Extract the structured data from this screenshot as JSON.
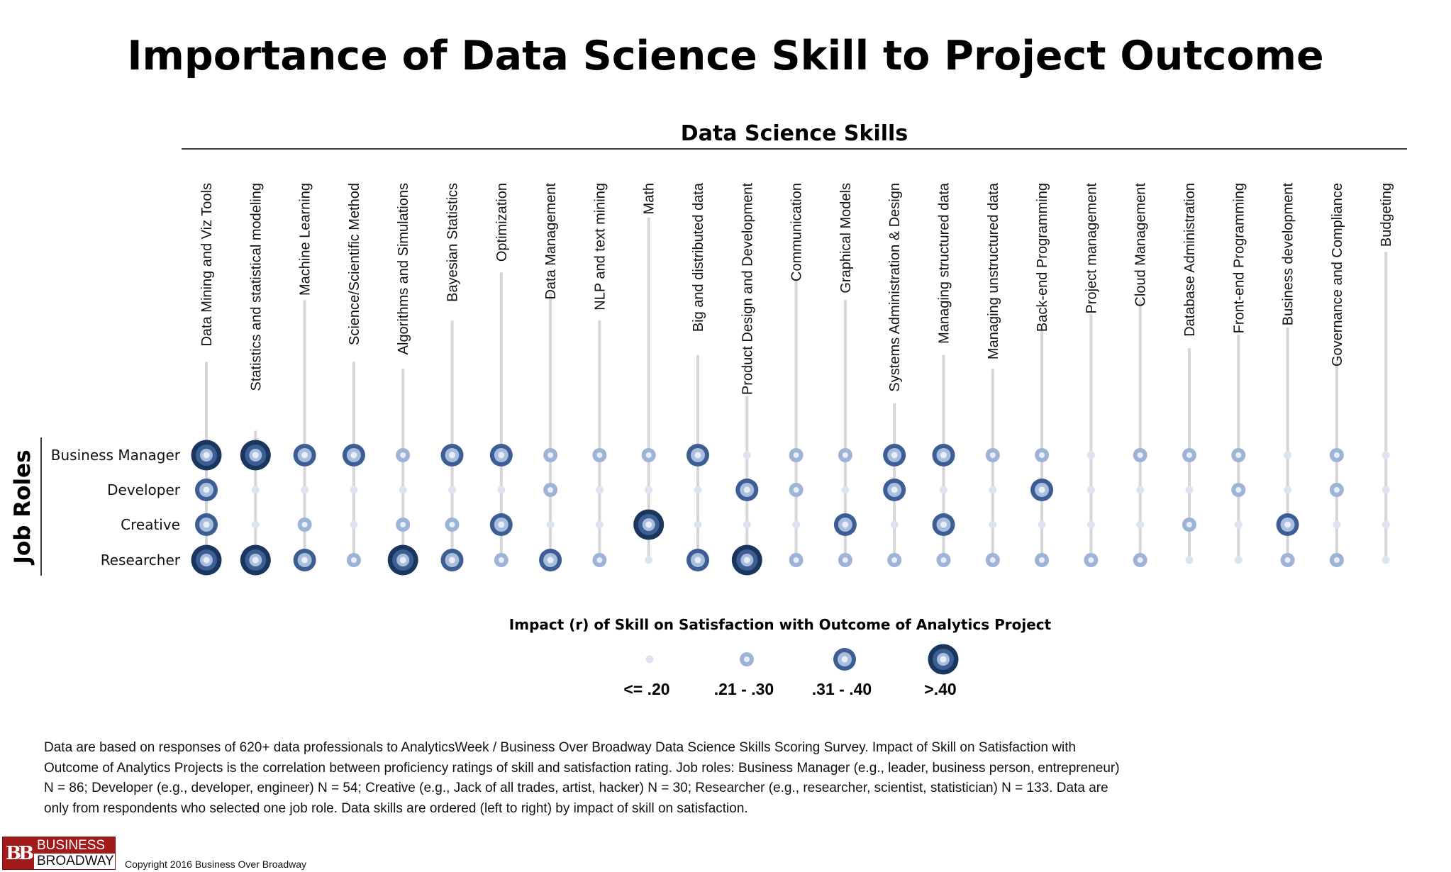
{
  "title": "Importance of Data Science Skill to Project Outcome",
  "chart_data": {
    "type": "bubble-matrix",
    "title": "Importance of Data Science Skill to Project Outcome",
    "x_axis_title": "Data Science Skills",
    "y_axis_title": "Job Roles",
    "skills": [
      "Data Mining and Viz Tools",
      "Statistics and statistical modeling",
      "Machine Learning",
      "Science/Scientific Method",
      "Algorithms and Simulations",
      "Bayesian Statistics",
      "Optimization",
      "Data Management",
      "NLP and text mining",
      "Math",
      "Big and distributed data",
      "Product Design and Development",
      "Communication",
      "Graphical Models",
      "Systems Administration & Design",
      "Managing structured data",
      "Managing unstructured data",
      "Back-end Programming",
      "Project management",
      "Cloud Management",
      "Database Administration",
      "Front-end Programming",
      "Business development",
      "Governance and Compliance",
      "Budgeting"
    ],
    "roles": [
      "Business Manager",
      "Developer",
      "Creative",
      "Researcher"
    ],
    "impact_levels": [
      {
        "level": 1,
        "label": "<= .20"
      },
      {
        "level": 2,
        "label": ".21 - .30"
      },
      {
        "level": 3,
        "label": ".31 - .40"
      },
      {
        "level": 4,
        "label": ">.40"
      }
    ],
    "matrix": [
      [
        4,
        4,
        3,
        3,
        2,
        3,
        3,
        2,
        2,
        2,
        3,
        1,
        2,
        2,
        3,
        3,
        2,
        2,
        1,
        2,
        2,
        2,
        1,
        2,
        1
      ],
      [
        3,
        1,
        1,
        1,
        1,
        1,
        1,
        2,
        1,
        1,
        1,
        3,
        2,
        1,
        3,
        1,
        1,
        3,
        1,
        1,
        1,
        2,
        1,
        2,
        1
      ],
      [
        3,
        1,
        2,
        1,
        2,
        2,
        3,
        1,
        1,
        4,
        1,
        1,
        1,
        3,
        1,
        3,
        1,
        1,
        1,
        1,
        2,
        1,
        3,
        1,
        1
      ],
      [
        4,
        4,
        3,
        2,
        4,
        3,
        2,
        3,
        2,
        1,
        3,
        4,
        2,
        2,
        2,
        2,
        2,
        2,
        2,
        2,
        1,
        1,
        2,
        2,
        1
      ]
    ],
    "legend_title": "Impact (r) of Skill on Satisfaction with Outcome of Analytics Project",
    "colors": {
      "level1": "#dce4f0",
      "level2_outer": "#9db3d8",
      "level3_outer": "#3c5e93",
      "level4_outer": "#1b365e",
      "inner_light": "#a9bedf",
      "center": "#e8eef7",
      "stem": "#d6d6d6"
    }
  },
  "footnote": "Data are based on responses of 620+ data professionals to AnalyticsWeek / Business Over Broadway Data Science Skills Scoring Survey.  Impact of Skill on Satisfaction with Outcome of Analytics Projects is the correlation between proficiency ratings of skill and satisfaction rating. Job roles: Business Manager (e.g., leader, business person, entrepreneur) N = 86; Developer (e.g., developer, engineer) N = 54; Creative (e.g., Jack of all trades, artist, hacker) N = 30; Researcher (e.g., researcher, scientist, statistician) N = 133. Data are only from respondents who selected one job role. Data skills are ordered (left to right) by impact of skill on satisfaction.",
  "logo": {
    "mark": "BB",
    "line1": "BUSINESS",
    "line2": "BROADWAY"
  },
  "copyright": "Copyright 2016 Business Over Broadway"
}
